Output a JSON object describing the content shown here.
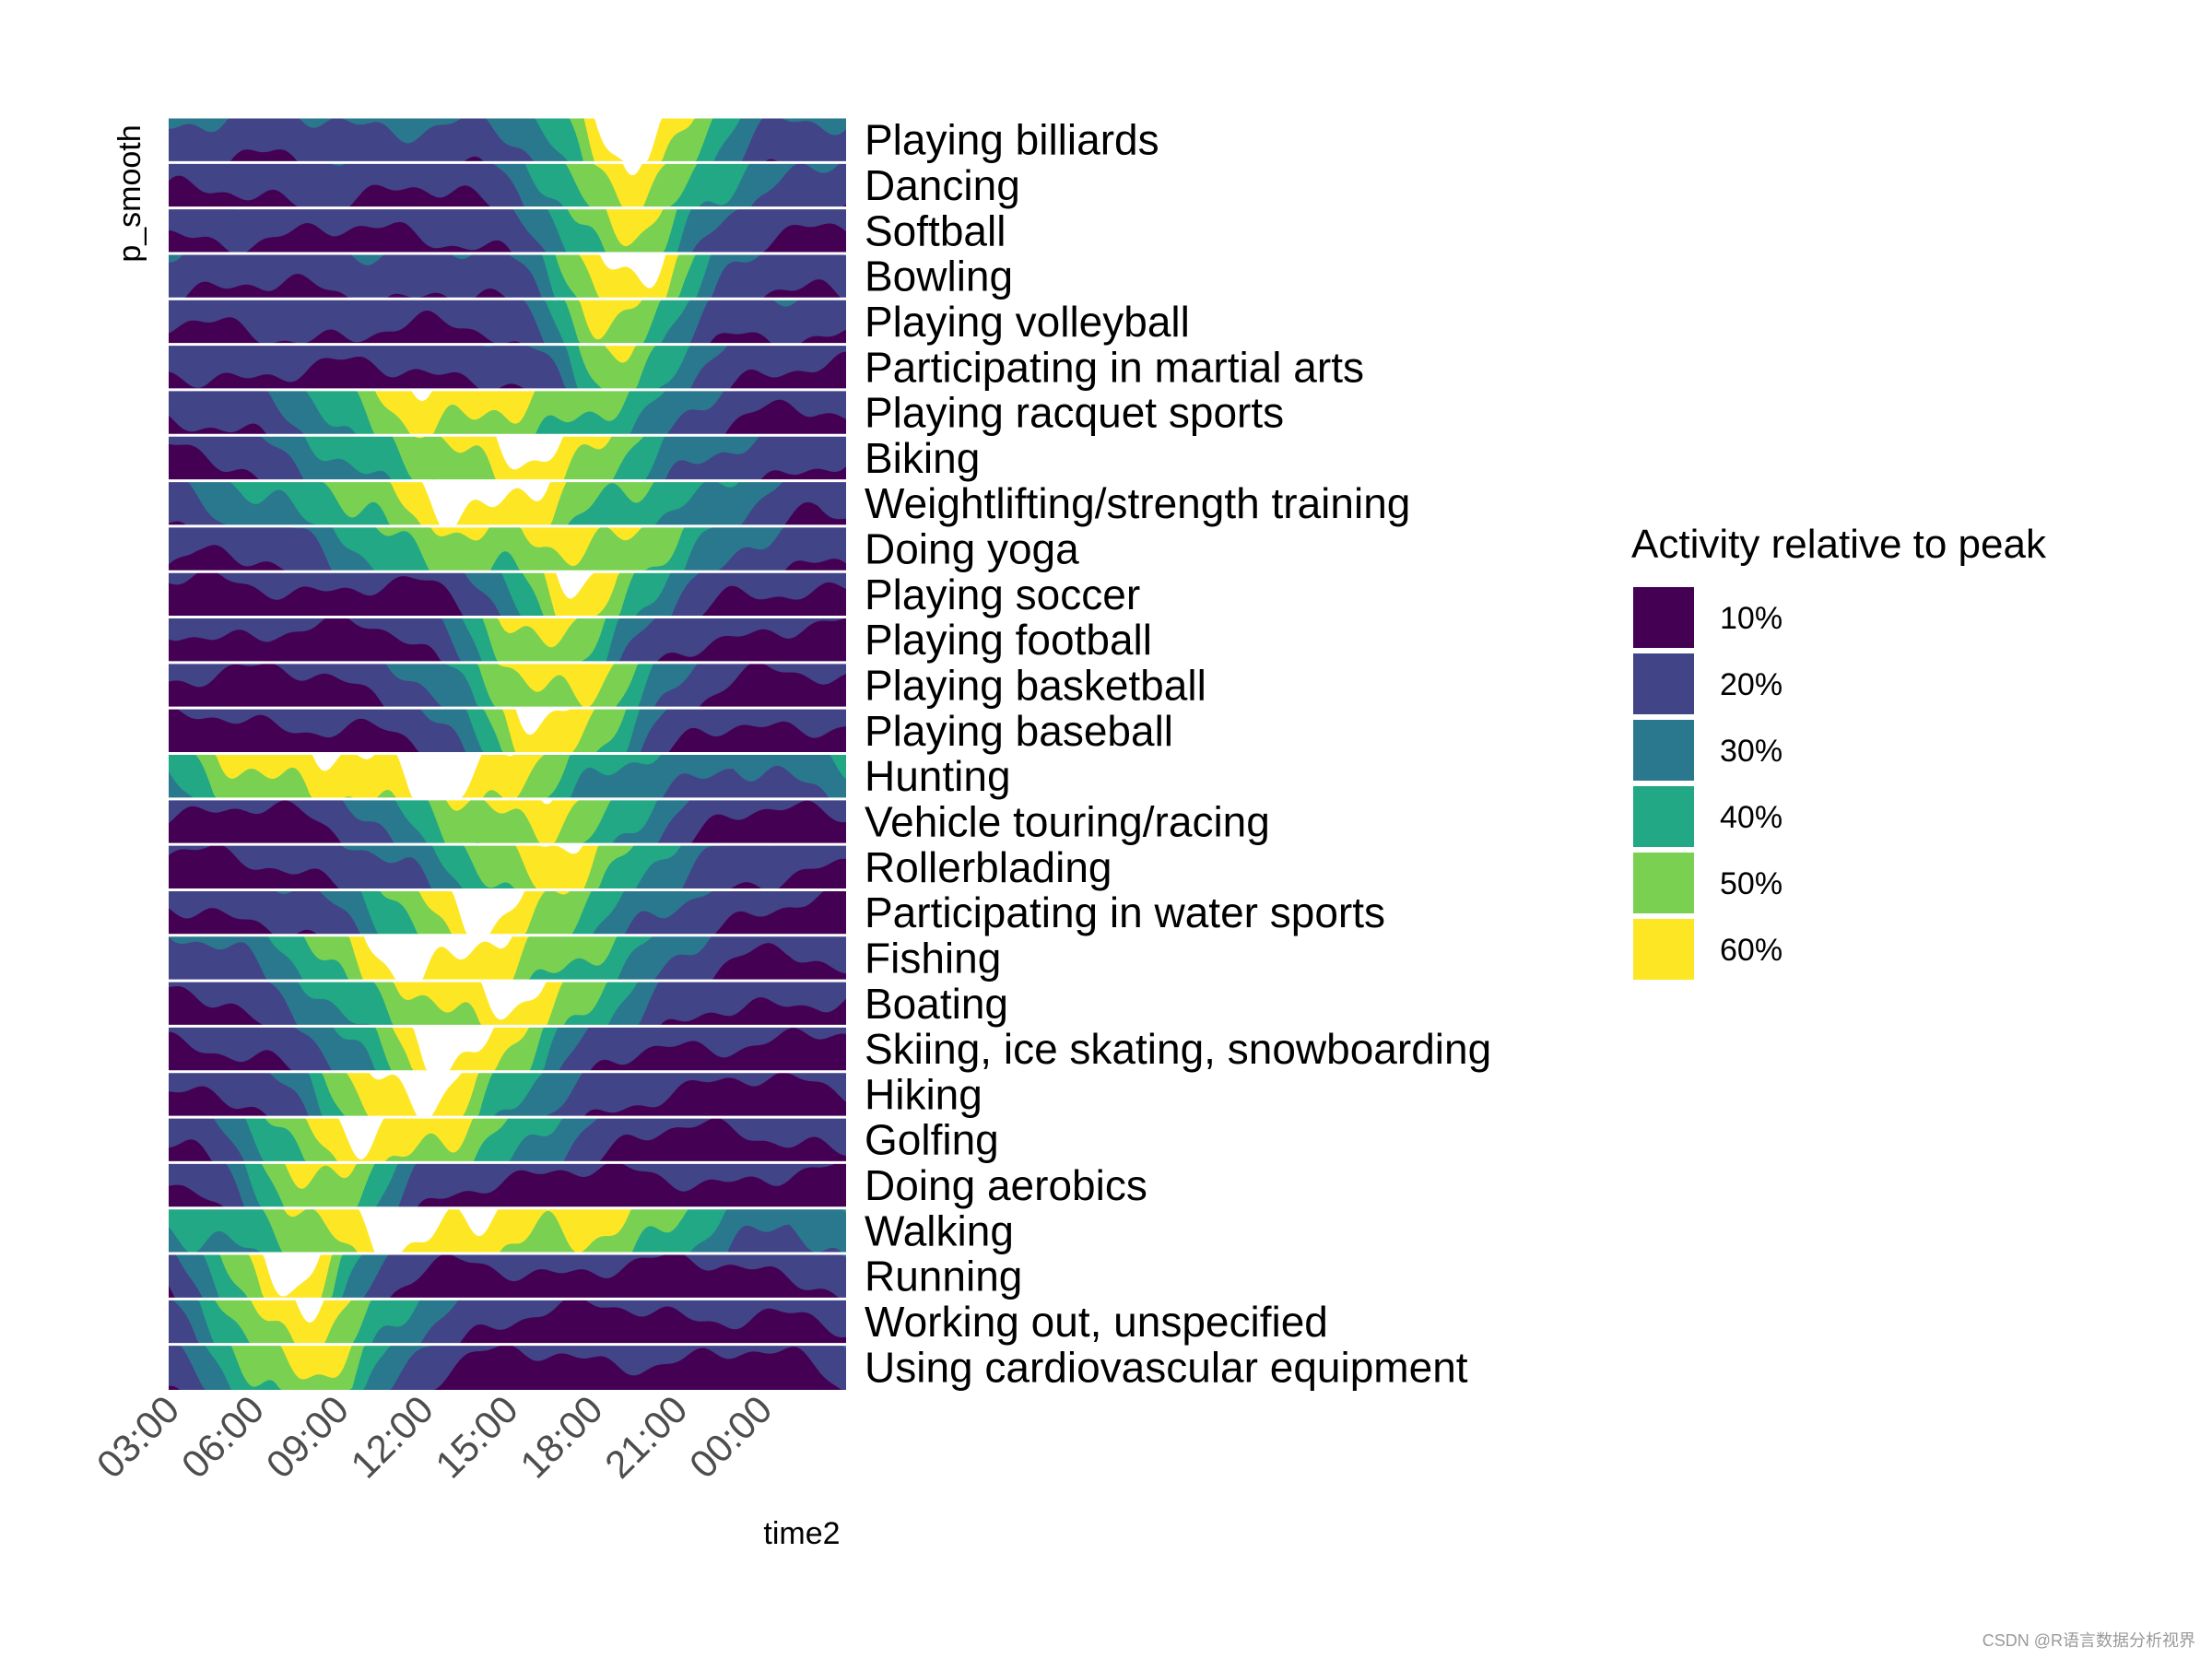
{
  "chart_data": {
    "type": "area",
    "subtype": "horizon",
    "xlabel": "time2",
    "ylabel": "p_smooth",
    "x_ticks": [
      "03:00",
      "06:00",
      "09:00",
      "12:00",
      "15:00",
      "18:00",
      "21:00",
      "00:00"
    ],
    "x_tick_hours": [
      3,
      6,
      9,
      12,
      15,
      18,
      21,
      24
    ],
    "x_range_hours": [
      3,
      27
    ],
    "legend": {
      "title": "Activity relative to peak",
      "position": "right",
      "entries": [
        {
          "label": "10%",
          "color": "#440154"
        },
        {
          "label": "20%",
          "color": "#414487"
        },
        {
          "label": "30%",
          "color": "#2a788e"
        },
        {
          "label": "40%",
          "color": "#22a884"
        },
        {
          "label": "50%",
          "color": "#7ad151"
        },
        {
          "label": "60%",
          "color": "#fde725"
        }
      ]
    },
    "series": [
      {
        "name": "Playing billiards",
        "peak_hour": 19.5,
        "width": 2.2,
        "floor": 0.18,
        "level": 0.9
      },
      {
        "name": "Dancing",
        "peak_hour": 19.8,
        "width": 2.4,
        "floor": 0.12,
        "level": 0.82
      },
      {
        "name": "Softball",
        "peak_hour": 19.0,
        "width": 1.7,
        "floor": 0.1,
        "level": 0.85
      },
      {
        "name": "Bowling",
        "peak_hour": 19.2,
        "width": 2.0,
        "floor": 0.14,
        "level": 0.88
      },
      {
        "name": "Playing volleyball",
        "peak_hour": 19.0,
        "width": 1.6,
        "floor": 0.12,
        "level": 0.8
      },
      {
        "name": "Participating in martial arts",
        "peak_hour": 19.0,
        "width": 1.5,
        "floor": 0.1,
        "level": 0.78
      },
      {
        "name": "Playing racquet sports",
        "peak_hour": 14.0,
        "width": 4.5,
        "floor": 0.05,
        "level": 0.82
      },
      {
        "name": "Biking",
        "peak_hour": 15.0,
        "width": 4.5,
        "floor": 0.05,
        "level": 0.85
      },
      {
        "name": "Weightlifting/strength training",
        "peak_hour": 14.0,
        "width": 5.5,
        "floor": 0.05,
        "level": 0.88
      },
      {
        "name": "Doing yoga",
        "peak_hour": 16.0,
        "width": 5.0,
        "floor": 0.05,
        "level": 0.78
      },
      {
        "name": "Playing soccer",
        "peak_hour": 17.8,
        "width": 2.2,
        "floor": 0.05,
        "level": 0.8
      },
      {
        "name": "Playing football",
        "peak_hour": 16.5,
        "width": 2.0,
        "floor": 0.05,
        "level": 0.82
      },
      {
        "name": "Playing basketball",
        "peak_hour": 16.5,
        "width": 2.6,
        "floor": 0.05,
        "level": 0.85
      },
      {
        "name": "Playing baseball",
        "peak_hour": 16.5,
        "width": 2.4,
        "floor": 0.05,
        "level": 0.82
      },
      {
        "name": "Hunting",
        "peak_hour": 11.0,
        "width": 6.0,
        "floor": 0.05,
        "level": 0.95
      },
      {
        "name": "Vehicle touring/racing",
        "peak_hour": 15.5,
        "width": 3.0,
        "floor": 0.05,
        "level": 0.85
      },
      {
        "name": "Rollerblading",
        "peak_hour": 16.5,
        "width": 3.5,
        "floor": 0.05,
        "level": 0.75
      },
      {
        "name": "Participating in water sports",
        "peak_hour": 14.5,
        "width": 3.5,
        "floor": 0.05,
        "level": 0.88
      },
      {
        "name": "Fishing",
        "peak_hour": 13.0,
        "width": 4.5,
        "floor": 0.05,
        "level": 0.95
      },
      {
        "name": "Boating",
        "peak_hour": 14.0,
        "width": 3.8,
        "floor": 0.05,
        "level": 0.9
      },
      {
        "name": "Skiing, ice skating, snowboarding",
        "peak_hour": 13.0,
        "width": 2.8,
        "floor": 0.05,
        "level": 0.92
      },
      {
        "name": "Hiking",
        "peak_hour": 12.0,
        "width": 3.0,
        "floor": 0.05,
        "level": 0.9
      },
      {
        "name": "Golfing",
        "peak_hour": 11.0,
        "width": 3.5,
        "floor": 0.05,
        "level": 0.92
      },
      {
        "name": "Doing aerobics",
        "peak_hour": 8.5,
        "width": 1.8,
        "floor": 0.05,
        "level": 0.85
      },
      {
        "name": "Walking",
        "peak_hour": 13.0,
        "width": 7.0,
        "floor": 0.05,
        "level": 0.92
      },
      {
        "name": "Running",
        "peak_hour": 7.0,
        "width": 2.0,
        "floor": 0.05,
        "level": 0.88
      },
      {
        "name": "Working out, unspecified",
        "peak_hour": 8.0,
        "width": 2.5,
        "floor": 0.05,
        "level": 0.88
      },
      {
        "name": "Using cardiovascular equipment",
        "peak_hour": 7.5,
        "width": 2.2,
        "floor": 0.05,
        "level": 0.85
      }
    ]
  },
  "watermark": "CSDN @R语言数据分析视界"
}
